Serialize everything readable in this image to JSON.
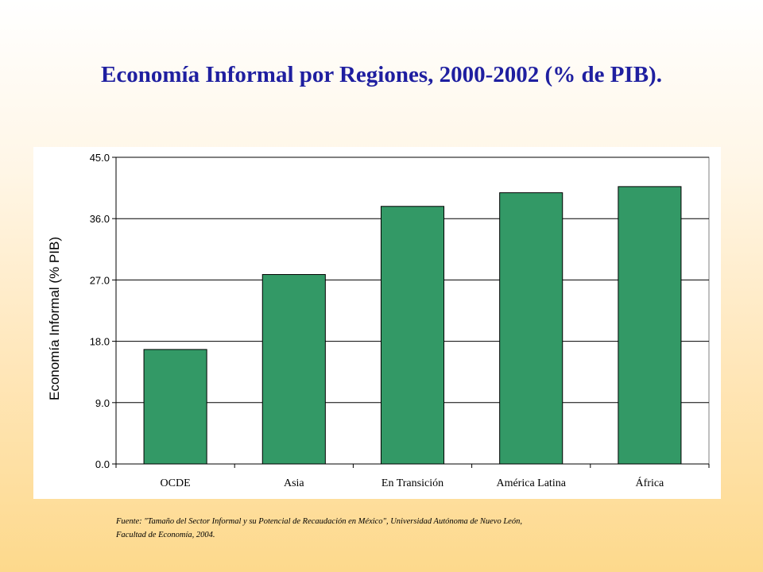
{
  "title": "Economía Informal por Regiones, 2000-2002 (% de PIB).",
  "chart_data": {
    "type": "bar",
    "title": "Economía Informal por Regiones, 2000-2002 (% de PIB).",
    "ylabel": "Economía Informal (% PIB)",
    "xlabel": "",
    "categories": [
      "OCDE",
      "Asia",
      "En Transición",
      "América Latina",
      "África"
    ],
    "values": [
      16.8,
      27.8,
      37.8,
      39.8,
      40.7
    ],
    "ylim": [
      0,
      45
    ],
    "yticks": [
      "0.0",
      "9.0",
      "18.0",
      "27.0",
      "36.0",
      "45.0"
    ],
    "grid": true,
    "bar_color": "#339966"
  },
  "source_line1": "Fuente: \"Tamaño del Sector Informal y su Potencial de Recaudación en México\", Universidad Autónoma de Nuevo León,",
  "source_line2": "Facultad de Economía, 2004."
}
